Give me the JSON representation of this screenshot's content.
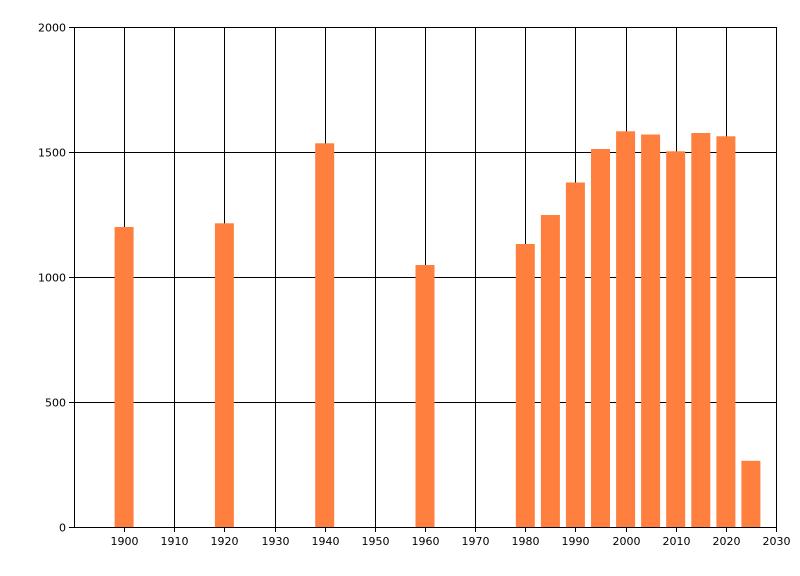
{
  "chart_data": {
    "type": "bar",
    "title": "",
    "xlabel": "",
    "ylabel": "",
    "x": [
      1900,
      1920,
      1940,
      1960,
      1980,
      1985,
      1990,
      1995,
      2000,
      2005,
      2010,
      2015,
      2020,
      2025
    ],
    "values": [
      1200,
      1215,
      1535,
      1048,
      1132,
      1248,
      1378,
      1512,
      1583,
      1570,
      1503,
      1576,
      1563,
      265
    ],
    "xlim": [
      1890,
      2030
    ],
    "ylim": [
      0,
      2000
    ],
    "xticks": [
      1900,
      1910,
      1920,
      1930,
      1940,
      1950,
      1960,
      1970,
      1980,
      1990,
      2000,
      2010,
      2020,
      2030
    ],
    "yticks": [
      0,
      500,
      1000,
      1500,
      2000
    ],
    "grid": true,
    "legend": "none",
    "bar_color": "#ff7f3f",
    "grid_color": "#000000"
  }
}
